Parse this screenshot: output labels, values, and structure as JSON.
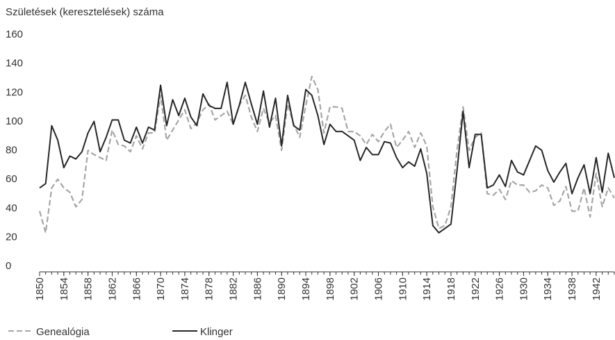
{
  "chart_data": {
    "type": "line",
    "y_label": "Születések (keresztelések) száma",
    "x": [
      1850,
      1851,
      1852,
      1853,
      1854,
      1855,
      1856,
      1857,
      1858,
      1859,
      1860,
      1861,
      1862,
      1863,
      1864,
      1865,
      1866,
      1867,
      1868,
      1869,
      1870,
      1871,
      1872,
      1873,
      1874,
      1875,
      1876,
      1877,
      1878,
      1879,
      1880,
      1881,
      1882,
      1883,
      1884,
      1885,
      1886,
      1887,
      1888,
      1889,
      1890,
      1891,
      1892,
      1893,
      1894,
      1895,
      1896,
      1897,
      1898,
      1899,
      1900,
      1901,
      1902,
      1903,
      1904,
      1905,
      1906,
      1907,
      1908,
      1909,
      1910,
      1911,
      1912,
      1913,
      1914,
      1915,
      1916,
      1917,
      1918,
      1919,
      1920,
      1921,
      1922,
      1923,
      1924,
      1925,
      1926,
      1927,
      1928,
      1929,
      1930,
      1931,
      1932,
      1933,
      1934,
      1935,
      1936,
      1937,
      1938,
      1939,
      1940,
      1941,
      1942,
      1943,
      1944,
      1945
    ],
    "series": [
      {
        "name": "Genealógia",
        "color": "#a6a6a6",
        "dash": true,
        "values": [
          42,
          27,
          58,
          64,
          58,
          55,
          45,
          50,
          84,
          81,
          79,
          77,
          98,
          88,
          87,
          83,
          94,
          85,
          96,
          96,
          122,
          91,
          98,
          105,
          112,
          99,
          103,
          112,
          116,
          105,
          108,
          111,
          102,
          115,
          122,
          107,
          97,
          113,
          103,
          108,
          84,
          116,
          102,
          93,
          115,
          135,
          126,
          96,
          114,
          114,
          113,
          97,
          97,
          94,
          88,
          95,
          90,
          97,
          102,
          86,
          91,
          97,
          86,
          96,
          87,
          45,
          30,
          32,
          45,
          84,
          114,
          84,
          93,
          96,
          54,
          53,
          57,
          50,
          63,
          60,
          60,
          55,
          56,
          60,
          58,
          46,
          49,
          59,
          42,
          42,
          58,
          38,
          68,
          45,
          58,
          51
        ]
      },
      {
        "name": "Klinger",
        "color": "#262626",
        "dash": false,
        "values": [
          58,
          61,
          101,
          91,
          72,
          80,
          78,
          83,
          96,
          104,
          83,
          93,
          105,
          105,
          91,
          89,
          100,
          89,
          100,
          98,
          129,
          101,
          119,
          108,
          120,
          107,
          101,
          123,
          115,
          113,
          113,
          131,
          102,
          115,
          131,
          116,
          102,
          125,
          100,
          120,
          87,
          122,
          101,
          98,
          126,
          122,
          108,
          88,
          102,
          97,
          97,
          94,
          91,
          77,
          86,
          81,
          81,
          90,
          89,
          79,
          72,
          76,
          73,
          85,
          68,
          32,
          27,
          30,
          33,
          70,
          111,
          72,
          95,
          95,
          58,
          60,
          67,
          59,
          77,
          69,
          67,
          77,
          87,
          84,
          70,
          62,
          69,
          75,
          54,
          65,
          74,
          54,
          79,
          55,
          82,
          65
        ]
      }
    ],
    "xlim": [
      1850,
      1945
    ],
    "xticks": [
      1850,
      1854,
      1858,
      1862,
      1866,
      1870,
      1874,
      1878,
      1882,
      1886,
      1890,
      1894,
      1898,
      1902,
      1906,
      1910,
      1914,
      1918,
      1922,
      1926,
      1930,
      1934,
      1938,
      1942
    ],
    "ylim": [
      0,
      160
    ],
    "yticks": [
      0,
      20,
      40,
      60,
      80,
      100,
      120,
      140,
      160
    ],
    "grid": false,
    "legend": "bottom-left"
  }
}
